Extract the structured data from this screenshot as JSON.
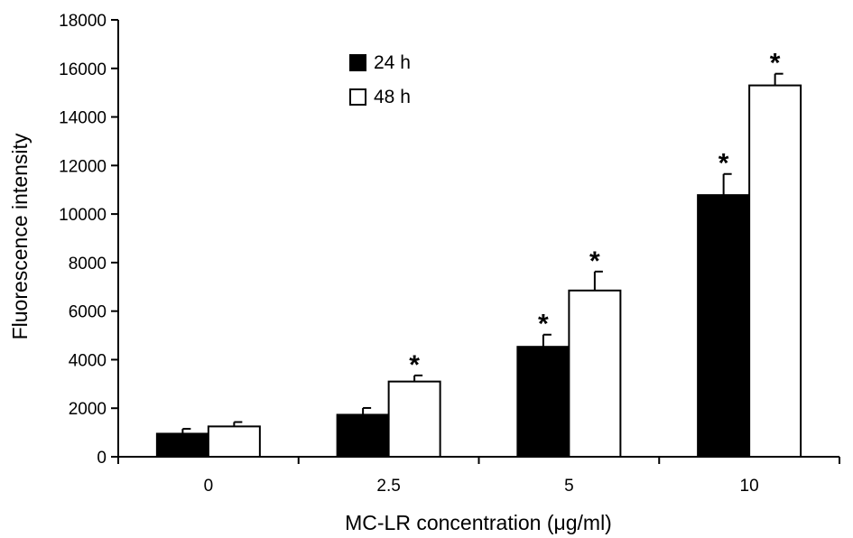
{
  "chart_data": {
    "type": "bar",
    "categories": [
      "0",
      "2.5",
      "5",
      "10"
    ],
    "series": [
      {
        "name": "24 h",
        "color": "#000000",
        "values": [
          950,
          1730,
          4530,
          10780
        ],
        "errors": [
          200,
          280,
          500,
          870
        ],
        "significant": [
          false,
          false,
          true,
          true
        ]
      },
      {
        "name": "48 h",
        "color": "#ffffff",
        "values": [
          1250,
          3100,
          6850,
          15300
        ],
        "errors": [
          180,
          250,
          780,
          480
        ],
        "significant": [
          false,
          true,
          true,
          true
        ]
      }
    ],
    "xlabel": "MC-LR concentration (μg/ml)",
    "ylabel": "Fluorescence intensity",
    "ylim": [
      0,
      18000
    ],
    "yticks": [
      "0",
      "2000",
      "4000",
      "6000",
      "8000",
      "10000",
      "12000",
      "14000",
      "16000",
      "18000"
    ],
    "significance_symbol": "*",
    "grid": false,
    "legend_position": "top-left"
  }
}
